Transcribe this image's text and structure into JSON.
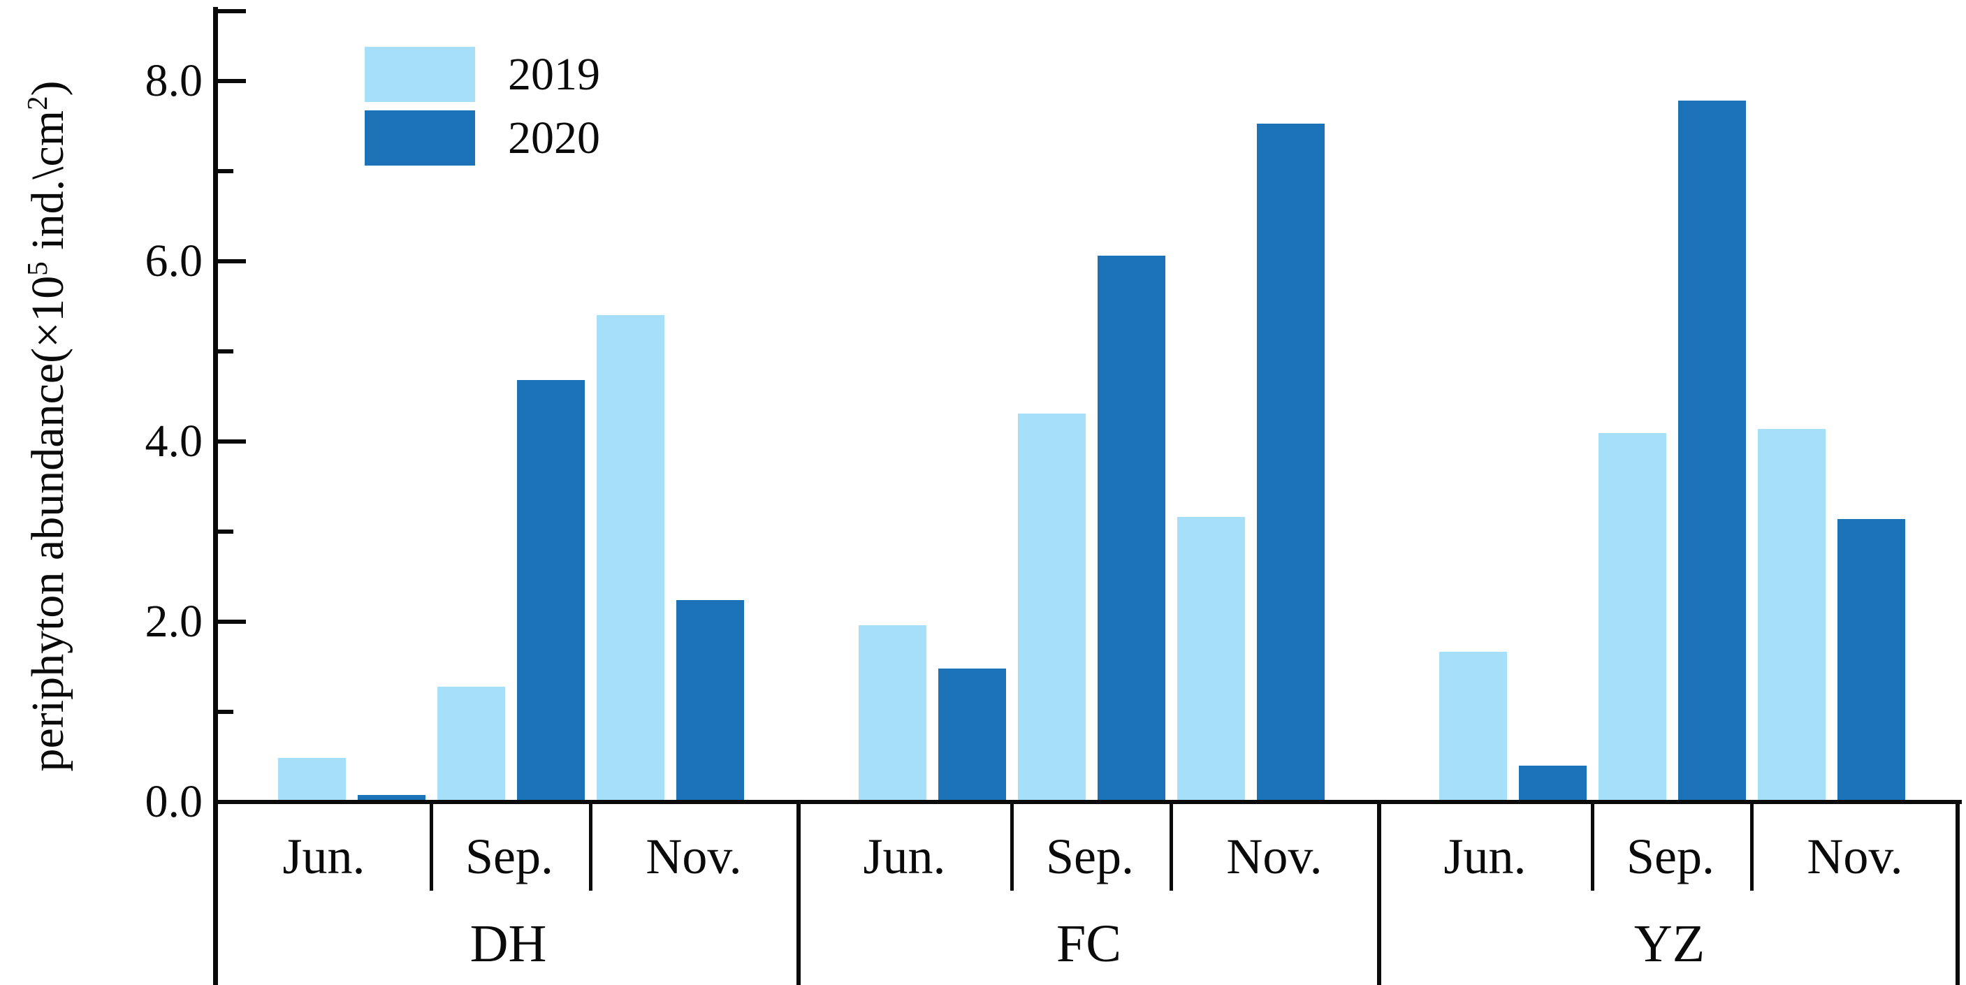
{
  "figure": {
    "kind": "grouped bar chart",
    "background": "#ffffff",
    "axis_color": "#0a0a0a"
  },
  "y_axis": {
    "title_prefix": "periphyton abundance(×10",
    "title_sup1": "5",
    "title_mid": " ind.\\cm",
    "title_sup2": "2",
    "title_suffix": ")",
    "tick_labels": [
      "0.0",
      "2.0",
      "4.0",
      "6.0",
      "8.0"
    ],
    "major_ticks": [
      0,
      2,
      4,
      6,
      8
    ],
    "minor_ticks": [
      1,
      3,
      5,
      7
    ]
  },
  "legend": {
    "items": [
      {
        "label": "2019",
        "color": "#A6DFF8"
      },
      {
        "label": "2020",
        "color": "#1B72B7"
      }
    ]
  },
  "chart_data": {
    "type": "bar",
    "title": "",
    "xlabel": "",
    "ylabel": "periphyton abundance(×10^5 ind.\\cm^2)",
    "ylim": [
      0,
      8.8
    ],
    "grid": false,
    "legend_position": "top-left-inside",
    "groups": [
      "DH",
      "FC",
      "YZ"
    ],
    "categories": [
      "Jun.",
      "Sep.",
      "Nov."
    ],
    "series": [
      {
        "name": "2019",
        "color": "#A6DFF8",
        "values": [
          [
            0.49,
            1.28,
            5.4
          ],
          [
            1.96,
            4.31,
            3.16
          ],
          [
            1.67,
            4.09,
            4.14
          ]
        ]
      },
      {
        "name": "2020",
        "color": "#1B72B7",
        "values": [
          [
            0.08,
            4.68,
            2.24
          ],
          [
            1.48,
            6.06,
            7.53
          ],
          [
            0.4,
            7.78,
            3.14
          ]
        ]
      }
    ]
  }
}
